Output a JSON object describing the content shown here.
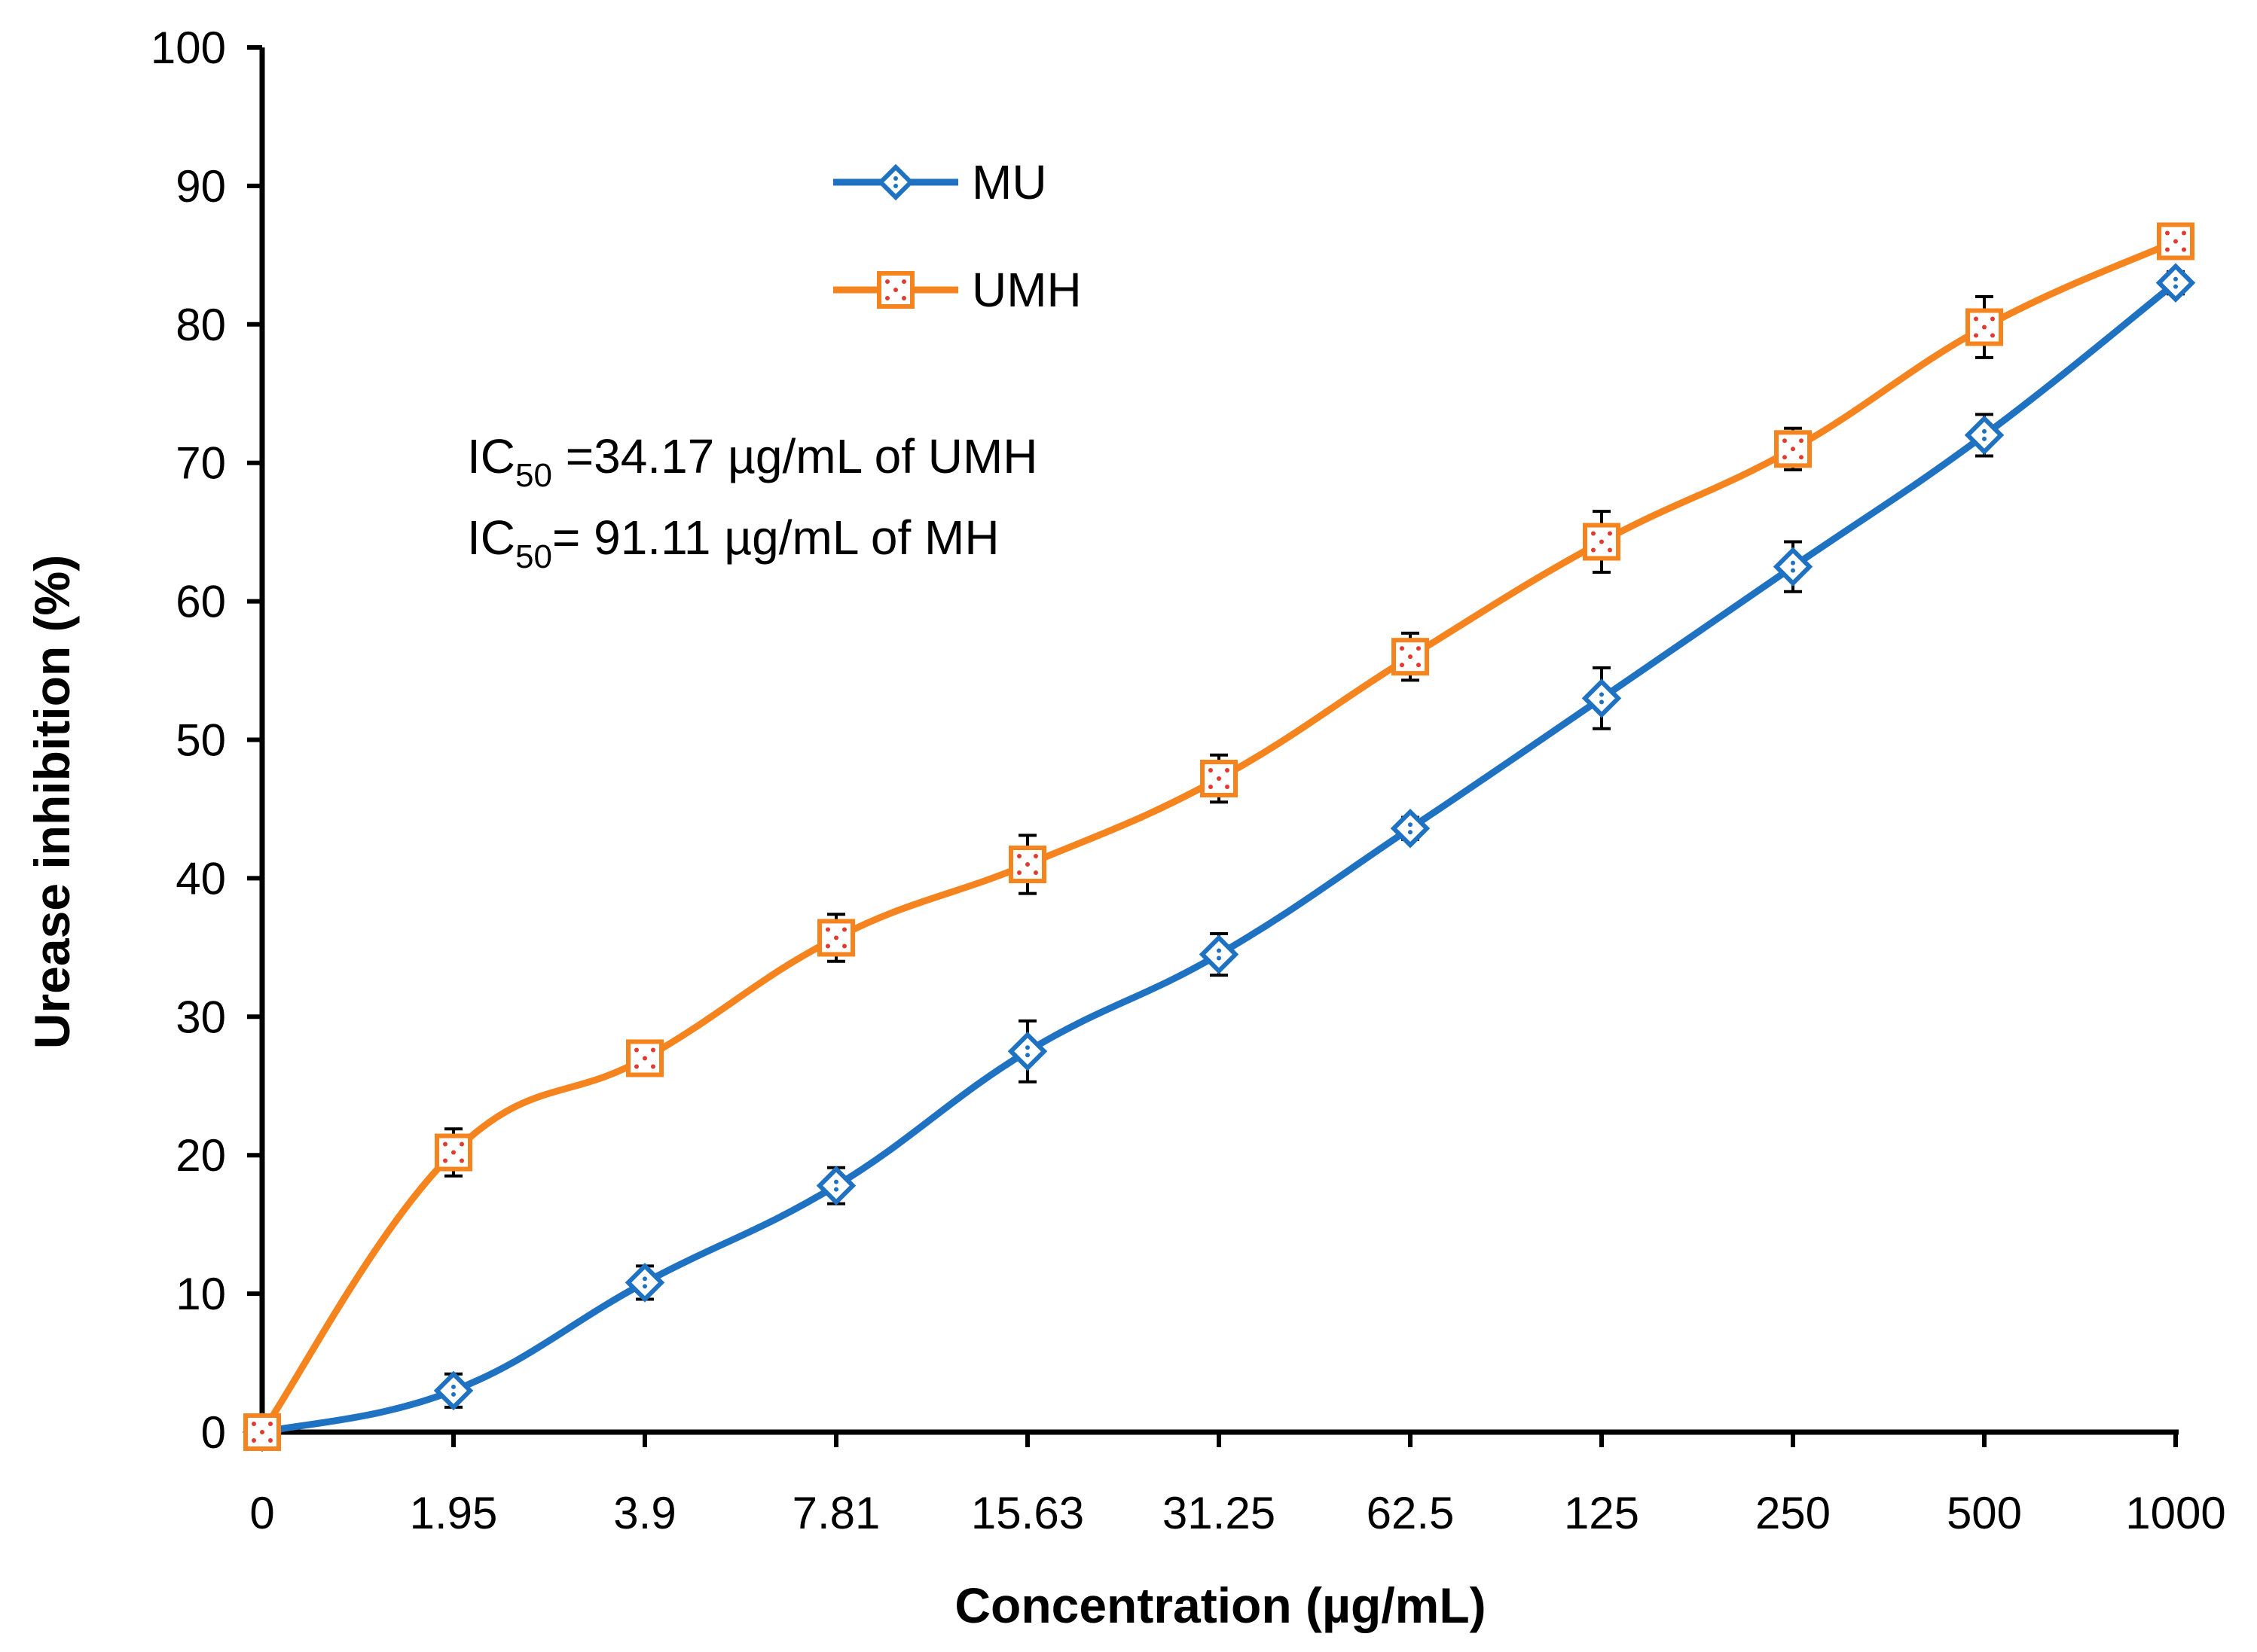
{
  "chart_data": {
    "type": "line",
    "title": "",
    "xlabel": "Concentration (µg/mL)",
    "ylabel": "Urease inhibition (%)",
    "categories": [
      "0",
      "1.95",
      "3.9",
      "7.81",
      "15.63",
      "31.25",
      "62.5",
      "125",
      "250",
      "500",
      "1000"
    ],
    "ylim": [
      0,
      100
    ],
    "yticks": [
      0,
      10,
      20,
      30,
      40,
      50,
      60,
      70,
      80,
      90,
      100
    ],
    "grid": false,
    "legend_position": "top-center",
    "series": [
      {
        "name": "MU",
        "color": "#1F72C2",
        "marker": "diamond",
        "values": [
          0,
          3,
          10.8,
          17.8,
          27.5,
          34.5,
          43.6,
          53,
          62.5,
          72,
          83
        ],
        "errors": [
          0,
          1.2,
          1.2,
          1.3,
          2.2,
          1.5,
          0.8,
          2.2,
          1.8,
          1.5,
          0.8
        ]
      },
      {
        "name": "UMH",
        "color": "#F5841F",
        "marker": "square",
        "values": [
          0,
          20.2,
          27,
          35.7,
          41,
          47.2,
          56,
          64.3,
          71,
          79.8,
          86
        ],
        "errors": [
          0,
          1.7,
          0.9,
          1.7,
          2.1,
          1.7,
          1.7,
          2.2,
          1.5,
          2.2,
          0.8
        ]
      }
    ],
    "annotations": [
      {
        "label": "IC",
        "sub": "50",
        "text": " =34.17 µg/mL of UMH"
      },
      {
        "label": "IC",
        "sub": "50",
        "text": "= 91.11 µg/mL of MH"
      }
    ]
  }
}
